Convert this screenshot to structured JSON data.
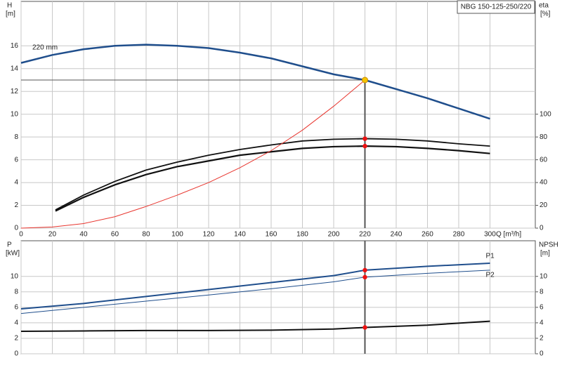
{
  "chart_data": [
    {
      "type": "line",
      "title": "NBG 150-125-250/220",
      "annotation": "220 mm",
      "ylabel": "H",
      "yunit": "[m]",
      "y2label": "eta",
      "y2unit": "[%]",
      "xlabel": "Q [m³/h]",
      "xlim": [
        0,
        329
      ],
      "xticks": [
        0,
        20,
        40,
        60,
        80,
        100,
        120,
        140,
        160,
        180,
        200,
        220,
        240,
        260,
        280,
        300
      ],
      "ylim": [
        0,
        19.9
      ],
      "yticks": [
        0,
        2,
        4,
        6,
        8,
        10,
        12,
        14,
        16
      ],
      "y2lim": [
        0,
        199
      ],
      "y2ticks": [
        0,
        20,
        40,
        60,
        80,
        100
      ],
      "grid": true,
      "series": [
        {
          "color": "#1f4e8c",
          "width": 2.5,
          "x": [
            0,
            20,
            40,
            60,
            80,
            100,
            120,
            140,
            160,
            180,
            200,
            220,
            240,
            260,
            280,
            300
          ],
          "values": [
            14.5,
            15.2,
            15.7,
            16.0,
            16.1,
            16.0,
            15.8,
            15.4,
            14.9,
            14.2,
            13.5,
            13.0,
            12.2,
            11.4,
            10.5,
            9.6
          ]
        },
        {
          "color": "#111111",
          "width": 1.8,
          "axis": "y2",
          "x": [
            22,
            40,
            60,
            80,
            100,
            120,
            140,
            160,
            180,
            200,
            220,
            240,
            260,
            280,
            300
          ],
          "values": [
            16,
            29,
            41,
            51,
            58,
            64,
            69,
            73,
            76.5,
            78,
            78.5,
            78,
            76.5,
            74,
            72
          ]
        },
        {
          "color": "#111111",
          "width": 2.2,
          "axis": "y2",
          "x": [
            22,
            40,
            60,
            80,
            100,
            120,
            140,
            160,
            180,
            200,
            220,
            240,
            260,
            280,
            300
          ],
          "values": [
            15,
            27,
            38,
            47,
            54,
            59,
            64,
            67,
            70,
            71.5,
            72,
            71.5,
            70,
            68,
            65.5
          ]
        },
        {
          "color": "#e8352e",
          "width": 1,
          "x": [
            0,
            20,
            40,
            60,
            80,
            100,
            120,
            140,
            160,
            180,
            200,
            220
          ],
          "values": [
            0,
            0.1,
            0.4,
            1.0,
            1.9,
            2.9,
            4.0,
            5.3,
            6.8,
            8.6,
            10.7,
            13.0
          ]
        }
      ],
      "points": [
        {
          "x": 220,
          "y": 13.0,
          "color": "#f5c400"
        },
        {
          "x": 220,
          "y": 78.5,
          "axis": "y2",
          "color": "#ee1111"
        },
        {
          "x": 220,
          "y": 72,
          "axis": "y2",
          "color": "#ee1111"
        }
      ]
    },
    {
      "type": "line",
      "ylabel": "P",
      "yunit": "[kW]",
      "y2label": "NPSH",
      "y2unit": "[m]",
      "xlim": [
        0,
        329
      ],
      "xticks": [
        0,
        20,
        40,
        60,
        80,
        100,
        120,
        140,
        160,
        180,
        200,
        220,
        240,
        260,
        280,
        300
      ],
      "ylim": [
        0,
        14.6
      ],
      "yticks": [
        0,
        2,
        4,
        6,
        8,
        10
      ],
      "y2lim": [
        0,
        14.6
      ],
      "y2ticks": [
        0,
        2,
        4,
        6,
        8,
        10
      ],
      "grid": true,
      "series": [
        {
          "name": "P1",
          "color": "#1f4e8c",
          "width": 2,
          "x": [
            0,
            40,
            80,
            120,
            160,
            200,
            220,
            260,
            300
          ],
          "values": [
            5.8,
            6.5,
            7.4,
            8.3,
            9.2,
            10.1,
            10.8,
            11.3,
            11.7
          ]
        },
        {
          "name": "P2",
          "color": "#1f4e8c",
          "width": 1,
          "x": [
            0,
            40,
            80,
            120,
            160,
            200,
            220,
            260,
            300
          ],
          "values": [
            5.2,
            6.0,
            6.8,
            7.6,
            8.4,
            9.3,
            9.9,
            10.4,
            10.8
          ]
        },
        {
          "color": "#111111",
          "width": 2,
          "axis": "y2",
          "x": [
            0,
            40,
            80,
            120,
            160,
            200,
            220,
            260,
            300
          ],
          "values": [
            2.9,
            2.95,
            3.0,
            3.0,
            3.05,
            3.2,
            3.4,
            3.7,
            4.2
          ]
        }
      ],
      "points": [
        {
          "x": 220,
          "y": 10.8,
          "color": "#ee1111"
        },
        {
          "x": 220,
          "y": 9.9,
          "color": "#ee1111"
        },
        {
          "x": 220,
          "y": 3.4,
          "axis": "y2",
          "color": "#ee1111"
        }
      ]
    }
  ]
}
